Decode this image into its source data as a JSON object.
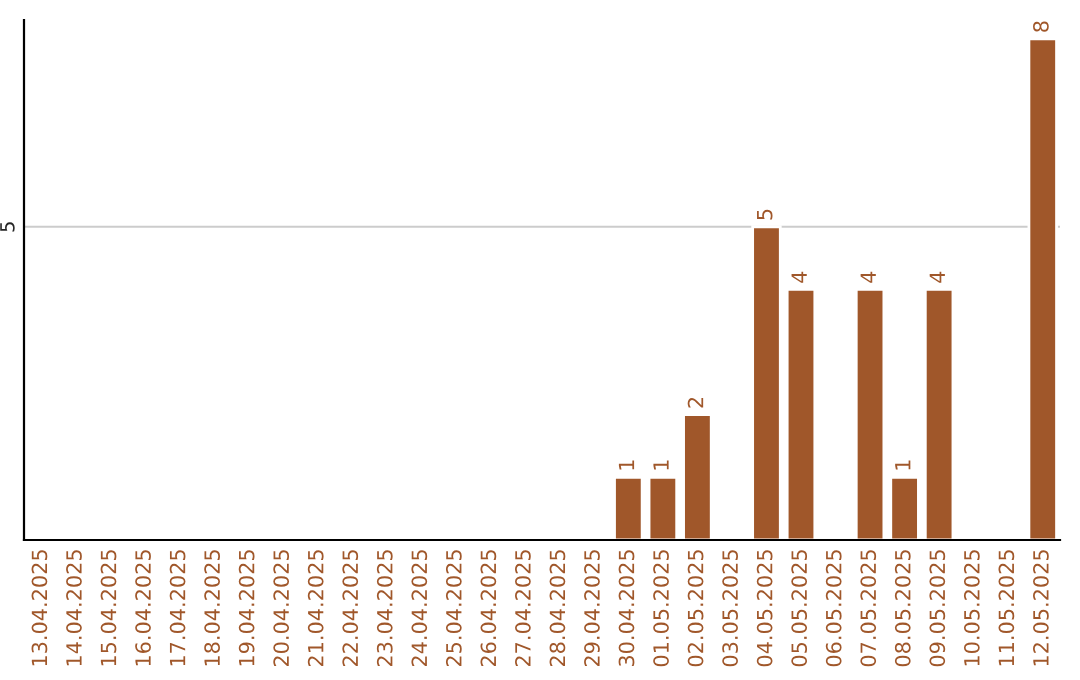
{
  "chart_data": {
    "type": "bar",
    "categories": [
      "13.04.2025",
      "14.04.2025",
      "15.04.2025",
      "16.04.2025",
      "17.04.2025",
      "18.04.2025",
      "19.04.2025",
      "20.04.2025",
      "21.04.2025",
      "22.04.2025",
      "23.04.2025",
      "24.04.2025",
      "25.04.2025",
      "26.04.2025",
      "27.04.2025",
      "28.04.2025",
      "29.04.2025",
      "30.04.2025",
      "01.05.2025",
      "02.05.2025",
      "03.05.2025",
      "04.05.2025",
      "05.05.2025",
      "06.05.2025",
      "07.05.2025",
      "08.05.2025",
      "09.05.2025",
      "10.05.2025",
      "11.05.2025",
      "12.05.2025"
    ],
    "values": [
      null,
      null,
      null,
      null,
      null,
      null,
      null,
      null,
      null,
      null,
      null,
      null,
      null,
      null,
      null,
      null,
      null,
      1,
      1,
      2,
      null,
      5,
      4,
      null,
      4,
      1,
      4,
      null,
      null,
      8
    ],
    "data_labels": true,
    "color": "#a0572a",
    "ylim": [
      0,
      8.3
    ],
    "ref_lines": [
      {
        "axis": "y",
        "value": 5,
        "label": "5",
        "color": "#cccccc"
      }
    ]
  }
}
